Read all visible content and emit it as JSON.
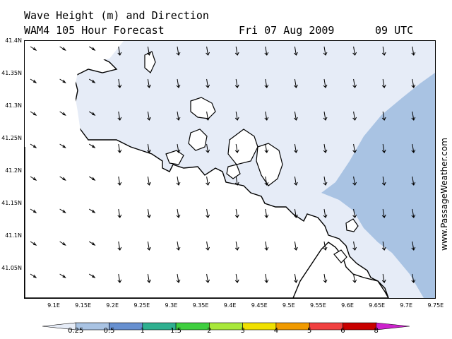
{
  "title_line1": "Wave Height (m) and Direction",
  "title_line2": "WAM4 105 Hour Forecast",
  "date": "Fri 07 Aug 2009",
  "time": "09 UTC",
  "credit": "www.PassageWeather.com",
  "lat_labels": [
    "41.4N",
    "41.35N",
    "41.3N",
    "41.25N",
    "41.2N",
    "41.15N",
    "41.1N",
    "41.05N"
  ],
  "lon_labels": [
    "9.1E",
    "9.15E",
    "9.2E",
    "9.25E",
    "9.3E",
    "9.35E",
    "9.4E",
    "9.45E",
    "9.5E",
    "9.55E",
    "9.6E",
    "9.65E",
    "9.7E",
    "9.75E"
  ],
  "legend": {
    "labels": [
      "0.25",
      "0.5",
      "1",
      "1.5",
      "2",
      "3",
      "4",
      "5",
      "6",
      "8"
    ],
    "colors": [
      "#e6ecf7",
      "#a9c3e3",
      "#6790d0",
      "#2fb090",
      "#3fcf3f",
      "#a8e83a",
      "#f0e000",
      "#f09a00",
      "#f04040",
      "#c80000",
      "#cc22cc"
    ]
  },
  "colors": {
    "sea_low": "#e6ecf7",
    "sea_mid": "#a9c3e3",
    "land": "#ffffff",
    "coast": "#000000"
  }
}
